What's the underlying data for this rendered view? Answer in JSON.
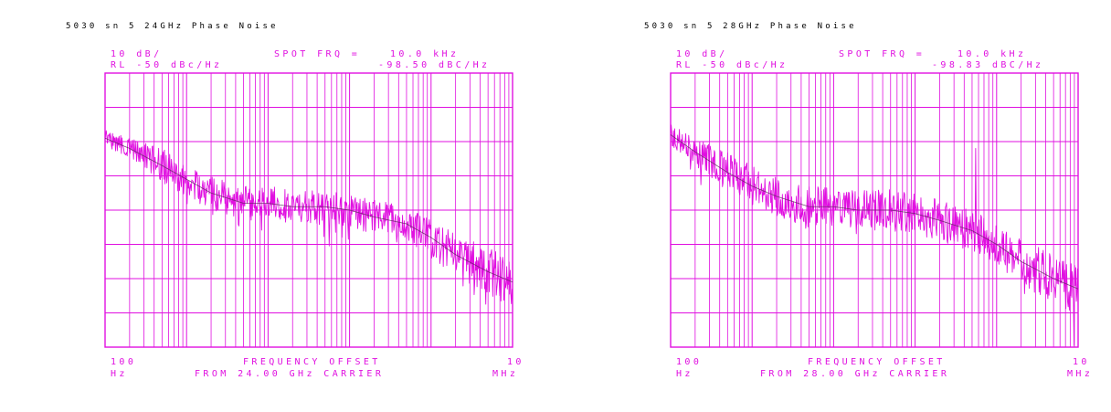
{
  "colors": {
    "trace": "#e010e0",
    "title": "#000000",
    "background": "#ffffff"
  },
  "chart_data": [
    {
      "type": "line",
      "title": "5030 sn 5 24GHz Phase Noise",
      "scale_label": "10 dB/",
      "ref_level_label": "RL -50 dBc/Hz",
      "spot_label": "SPOT FRQ =",
      "spot_value": "10.0 kHz",
      "spot_reading": "-98.50 dBC/Hz",
      "x_start_label": "100",
      "x_start_unit": "Hz",
      "x_end_label": "10",
      "x_end_unit": "MHz",
      "xlabel": "FREQUENCY OFFSET",
      "carrier_label": "FROM 24.00 GHz CARRIER",
      "x_scale": "log",
      "xlim_hz": [
        100,
        10000000
      ],
      "ylim_dbc": [
        -130,
        -50
      ],
      "grid": true,
      "x_hz": [
        100,
        200,
        500,
        1000,
        2000,
        5000,
        10000,
        20000,
        50000,
        100000,
        200000,
        500000,
        1000000,
        2000000,
        5000000,
        10000000
      ],
      "y_dbc": [
        -69,
        -72,
        -77,
        -81,
        -85,
        -88,
        -88,
        -89,
        -89,
        -90,
        -92,
        -94,
        -98,
        -103,
        -108,
        -111
      ],
      "noise_amplitude_db": [
        2.5,
        3,
        5,
        5,
        5,
        5,
        5,
        5,
        5,
        5,
        5,
        5,
        6,
        6,
        7,
        8
      ]
    },
    {
      "type": "line",
      "title": "5030 sn 5 28GHz Phase Noise",
      "scale_label": "10 dB/",
      "ref_level_label": "RL -50 dBc/Hz",
      "spot_label": "SPOT FRQ =",
      "spot_value": "10.0 kHz",
      "spot_reading": "-98.83 dBC/Hz",
      "x_start_label": "100",
      "x_start_unit": "Hz",
      "x_end_label": "10",
      "x_end_unit": "MHz",
      "xlabel": "FREQUENCY OFFSET",
      "carrier_label": "FROM 28.00 GHz CARRIER",
      "x_scale": "log",
      "xlim_hz": [
        100,
        10000000
      ],
      "ylim_dbc": [
        -130,
        -50
      ],
      "grid": true,
      "x_hz": [
        100,
        200,
        500,
        1000,
        2000,
        5000,
        10000,
        20000,
        50000,
        100000,
        200000,
        500000,
        1000000,
        2000000,
        5000000,
        10000000
      ],
      "y_dbc": [
        -68,
        -73,
        -79,
        -83,
        -86,
        -89,
        -89,
        -90,
        -90,
        -91,
        -93,
        -96,
        -100,
        -105,
        -110,
        -113
      ],
      "noise_amplitude_db": [
        3,
        4,
        6,
        6,
        6,
        6,
        6,
        6,
        6,
        6,
        6,
        6,
        6,
        7,
        7,
        8
      ],
      "spur_hz": 550000,
      "spur_dbc": -72
    }
  ]
}
